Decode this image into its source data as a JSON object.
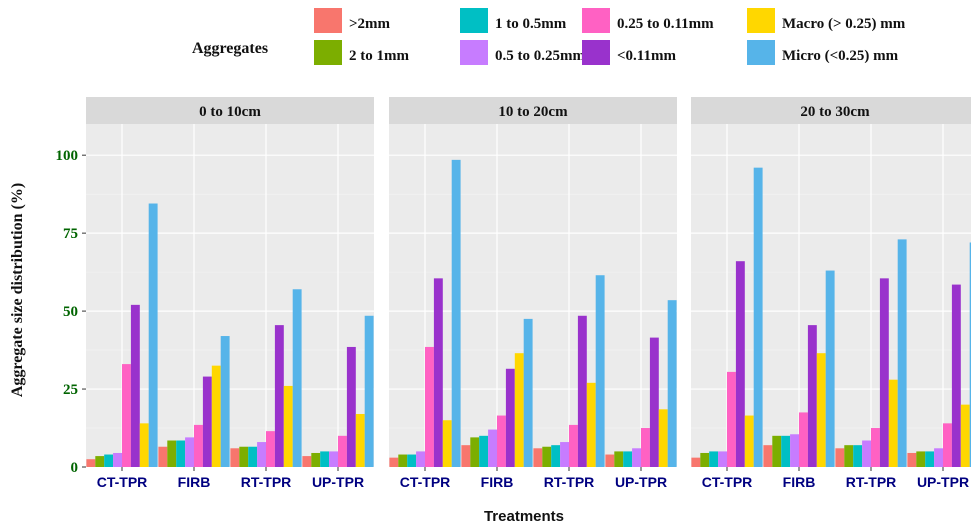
{
  "chart_data": {
    "type": "bar",
    "ylabel": "Aggregate size distribution (%)",
    "xlabel": "Treatments",
    "ylim": [
      0,
      110
    ],
    "yticks": [
      0,
      25,
      50,
      75,
      100
    ],
    "grid": true,
    "legend": {
      "title": "Aggregates",
      "placement": "top"
    },
    "categories": [
      "CT-TPR",
      "FIRB",
      "RT-TPR",
      "UP-TPR"
    ],
    "series_def": [
      {
        "name": ">2mm",
        "color": "#F8766D"
      },
      {
        "name": "2 to 1mm",
        "color": "#7CAE00"
      },
      {
        "name": "1 to 0.5mm",
        "color": "#00BFC4"
      },
      {
        "name": "0.5 to 0.25mm",
        "color": "#C77CFF"
      },
      {
        "name": "0.25 to 0.11mm",
        "color": "#FF61C3"
      },
      {
        "name": "<0.11mm",
        "color": "#9932CC"
      },
      {
        "name": "Macro (> 0.25) mm",
        "color": "#FFD700"
      },
      {
        "name": "Micro (<0.25) mm",
        "color": "#56B4E9"
      }
    ],
    "facets": [
      {
        "label": "0 to 10cm",
        "series": [
          {
            "name": ">2mm",
            "values": [
              2.5,
              6.5,
              6,
              3.5
            ]
          },
          {
            "name": "2 to 1mm",
            "values": [
              3.5,
              8.5,
              6.5,
              4.5
            ]
          },
          {
            "name": "1 to 0.5mm",
            "values": [
              4,
              8.5,
              6.5,
              5
            ]
          },
          {
            "name": "0.5 to 0.25mm",
            "values": [
              4.5,
              9.5,
              8,
              5
            ]
          },
          {
            "name": "0.25 to 0.11mm",
            "values": [
              33,
              13.5,
              11.5,
              10
            ]
          },
          {
            "name": "<0.11mm",
            "values": [
              52,
              29,
              45.5,
              38.5
            ]
          },
          {
            "name": "Macro (> 0.25) mm",
            "values": [
              14,
              32.5,
              26,
              17
            ]
          },
          {
            "name": "Micro (<0.25) mm",
            "values": [
              84.5,
              42,
              57,
              48.5
            ]
          }
        ]
      },
      {
        "label": "10 to 20cm",
        "series": [
          {
            "name": ">2mm",
            "values": [
              3,
              7,
              6,
              4
            ]
          },
          {
            "name": "2 to 1mm",
            "values": [
              4,
              9.5,
              6.5,
              5
            ]
          },
          {
            "name": "1 to 0.5mm",
            "values": [
              4,
              10,
              7,
              5
            ]
          },
          {
            "name": "0.5 to 0.25mm",
            "values": [
              5,
              12,
              8,
              6
            ]
          },
          {
            "name": "0.25 to 0.11mm",
            "values": [
              38.5,
              16.5,
              13.5,
              12.5
            ]
          },
          {
            "name": "<0.11mm",
            "values": [
              60.5,
              31.5,
              48.5,
              41.5
            ]
          },
          {
            "name": "Macro (> 0.25) mm",
            "values": [
              15,
              36.5,
              27,
              18.5
            ]
          },
          {
            "name": "Micro (<0.25) mm",
            "values": [
              98.5,
              47.5,
              61.5,
              53.5
            ]
          }
        ]
      },
      {
        "label": "20 to 30cm",
        "series": [
          {
            "name": ">2mm",
            "values": [
              3,
              7,
              6,
              4.5
            ]
          },
          {
            "name": "2 to 1mm",
            "values": [
              4.5,
              10,
              7,
              5
            ]
          },
          {
            "name": "1 to 0.5mm",
            "values": [
              5,
              10,
              7,
              5
            ]
          },
          {
            "name": "0.5 to 0.25mm",
            "values": [
              5,
              10.5,
              8.5,
              6
            ]
          },
          {
            "name": "0.25 to 0.11mm",
            "values": [
              30.5,
              17.5,
              12.5,
              14
            ]
          },
          {
            "name": "<0.11mm",
            "values": [
              66,
              45.5,
              60.5,
              58.5
            ]
          },
          {
            "name": "Macro (> 0.25) mm",
            "values": [
              16.5,
              36.5,
              28,
              20
            ]
          },
          {
            "name": "Micro (<0.25) mm",
            "values": [
              96,
              63,
              73,
              72
            ]
          }
        ]
      }
    ]
  }
}
